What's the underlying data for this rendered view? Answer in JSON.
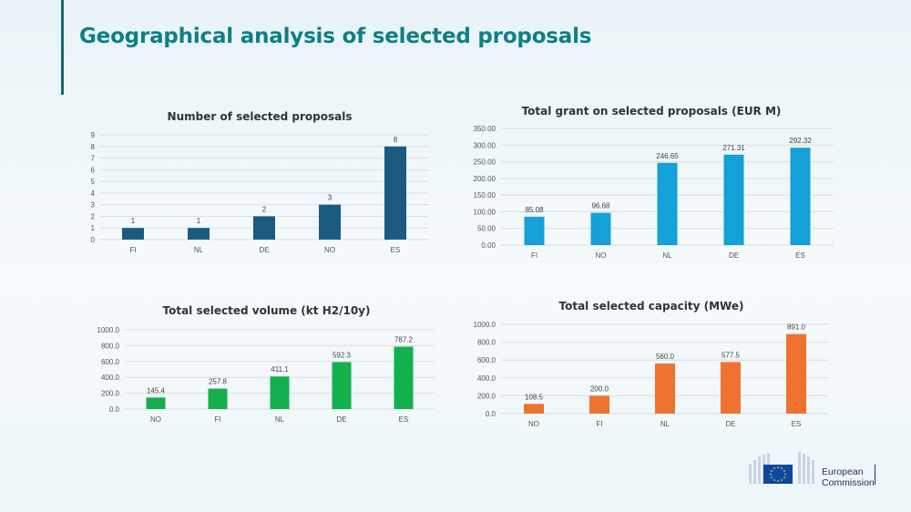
{
  "page": {
    "title": "Geographical analysis of selected proposals"
  },
  "logo": {
    "line1": "European",
    "line2": "Commission",
    "colors": {
      "flag": "#0e47a1",
      "star": "#f7d117"
    }
  },
  "chart_data": [
    {
      "id": "proposals",
      "type": "bar",
      "title": "Number of selected proposals",
      "categories": [
        "FI",
        "NL",
        "DE",
        "NO",
        "ES"
      ],
      "values": [
        1,
        1,
        2,
        3,
        8
      ],
      "labels": [
        "1",
        "1",
        "2",
        "3",
        "8"
      ],
      "ylim": [
        0,
        9
      ],
      "yticks": [
        0,
        1,
        2,
        3,
        4,
        5,
        6,
        7,
        8,
        9
      ],
      "ytick_labels": [
        "0",
        "1",
        "2",
        "3",
        "4",
        "5",
        "6",
        "7",
        "8",
        "9"
      ],
      "color": "#1b5b82",
      "grid": true
    },
    {
      "id": "grant",
      "type": "bar",
      "title": "Total grant on selected proposals (EUR M)",
      "categories": [
        "FI",
        "NO",
        "NL",
        "DE",
        "ES"
      ],
      "values": [
        85.08,
        96.68,
        246.65,
        271.31,
        292.32
      ],
      "labels": [
        "85.08",
        "96.68",
        "246.65",
        "271.31",
        "292.32"
      ],
      "ylim": [
        0,
        350
      ],
      "yticks": [
        0,
        50,
        100,
        150,
        200,
        250,
        300,
        350
      ],
      "ytick_labels": [
        "0.00",
        "50.00",
        "100.00",
        "150.00",
        "200.00",
        "250.00",
        "300.00",
        "350.00"
      ],
      "color": "#14a0d9",
      "grid": true
    },
    {
      "id": "volume",
      "type": "bar",
      "title": "Total selected volume (kt H2/10y)",
      "categories": [
        "NO",
        "FI",
        "NL",
        "DE",
        "ES"
      ],
      "values": [
        145.4,
        257.8,
        411.1,
        592.3,
        787.2
      ],
      "labels": [
        "145.4",
        "257.8",
        "411.1",
        "592.3",
        "787.2"
      ],
      "ylim": [
        0,
        1000
      ],
      "yticks": [
        0,
        200,
        400,
        600,
        800,
        1000
      ],
      "ytick_labels": [
        "0.0",
        "200.0",
        "400.0",
        "600.0",
        "800.0",
        "1000.0"
      ],
      "color": "#13b04d",
      "grid": true
    },
    {
      "id": "capacity",
      "type": "bar",
      "title": "Total selected capacity (MWe)",
      "categories": [
        "NO",
        "FI",
        "NL",
        "DE",
        "ES"
      ],
      "values": [
        108.5,
        200.0,
        560.0,
        577.5,
        891.0
      ],
      "labels": [
        "108.5",
        "200.0",
        "560.0",
        "577.5",
        "891.0"
      ],
      "ylim": [
        0,
        1000
      ],
      "yticks": [
        0,
        200,
        400,
        600,
        800,
        1000
      ],
      "ytick_labels": [
        "0.0",
        "200.0",
        "400.0",
        "600.0",
        "800.0",
        "1000.0"
      ],
      "color": "#ee7330",
      "grid": true
    }
  ]
}
